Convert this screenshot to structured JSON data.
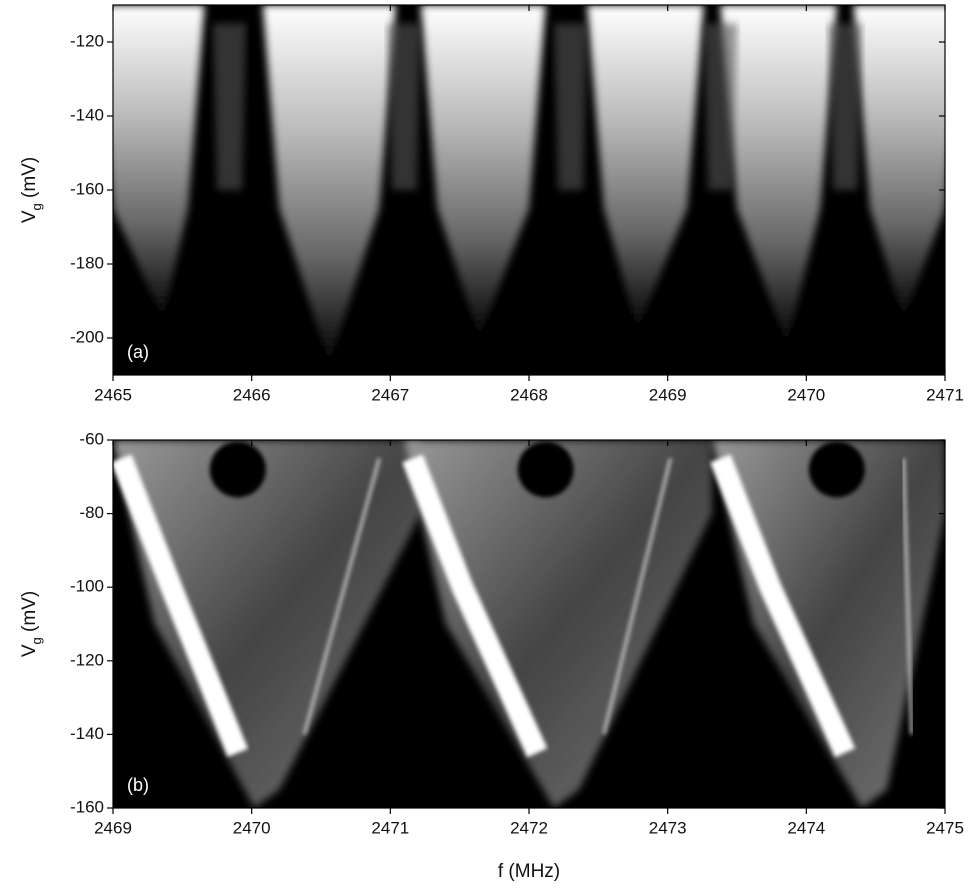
{
  "chart_data": [
    {
      "type": "heatmap",
      "panel_label": "(a)",
      "y_label": [
        "V",
        "g",
        " (mV)"
      ],
      "xlim": [
        2465,
        2471
      ],
      "xticks": [
        2465,
        2466,
        2467,
        2468,
        2469,
        2470,
        2471
      ],
      "ylim": [
        -210,
        -110
      ],
      "yticks": [
        -120,
        -140,
        -160,
        -180,
        -200
      ]
    },
    {
      "type": "heatmap",
      "panel_label": "(b)",
      "y_label": [
        "V",
        "g",
        " (mV)"
      ],
      "x_label": "f (MHz)",
      "xlim": [
        2469,
        2475
      ],
      "xticks": [
        2469,
        2470,
        2471,
        2472,
        2473,
        2474,
        2475
      ],
      "ylim": [
        -160,
        -60
      ],
      "yticks": [
        -60,
        -80,
        -100,
        -120,
        -140,
        -160
      ]
    }
  ]
}
